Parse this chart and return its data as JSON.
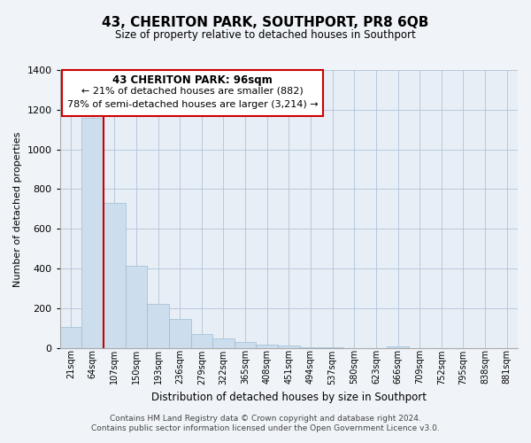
{
  "title": "43, CHERITON PARK, SOUTHPORT, PR8 6QB",
  "subtitle": "Size of property relative to detached houses in Southport",
  "xlabel": "Distribution of detached houses by size in Southport",
  "ylabel": "Number of detached properties",
  "bar_color": "#ccdded",
  "bar_edge_color": "#9bbdd4",
  "highlight_line_color": "#cc0000",
  "categories": [
    "21sqm",
    "64sqm",
    "107sqm",
    "150sqm",
    "193sqm",
    "236sqm",
    "279sqm",
    "322sqm",
    "365sqm",
    "408sqm",
    "451sqm",
    "494sqm",
    "537sqm",
    "580sqm",
    "623sqm",
    "666sqm",
    "709sqm",
    "752sqm",
    "795sqm",
    "838sqm",
    "881sqm"
  ],
  "values": [
    107,
    1160,
    730,
    415,
    220,
    148,
    72,
    50,
    30,
    15,
    13,
    5,
    4,
    0,
    0,
    8,
    0,
    0,
    0,
    0,
    0
  ],
  "ylim": [
    0,
    1400
  ],
  "yticks": [
    0,
    200,
    400,
    600,
    800,
    1000,
    1200,
    1400
  ],
  "annotation_title": "43 CHERITON PARK: 96sqm",
  "annotation_line1": "← 21% of detached houses are smaller (882)",
  "annotation_line2": "78% of semi-detached houses are larger (3,214) →",
  "annotation_box_edge": "#cc0000",
  "footer_line1": "Contains HM Land Registry data © Crown copyright and database right 2024.",
  "footer_line2": "Contains public sector information licensed under the Open Government Licence v3.0.",
  "background_color": "#f0f4f8",
  "plot_bg_color": "#e8eef5"
}
